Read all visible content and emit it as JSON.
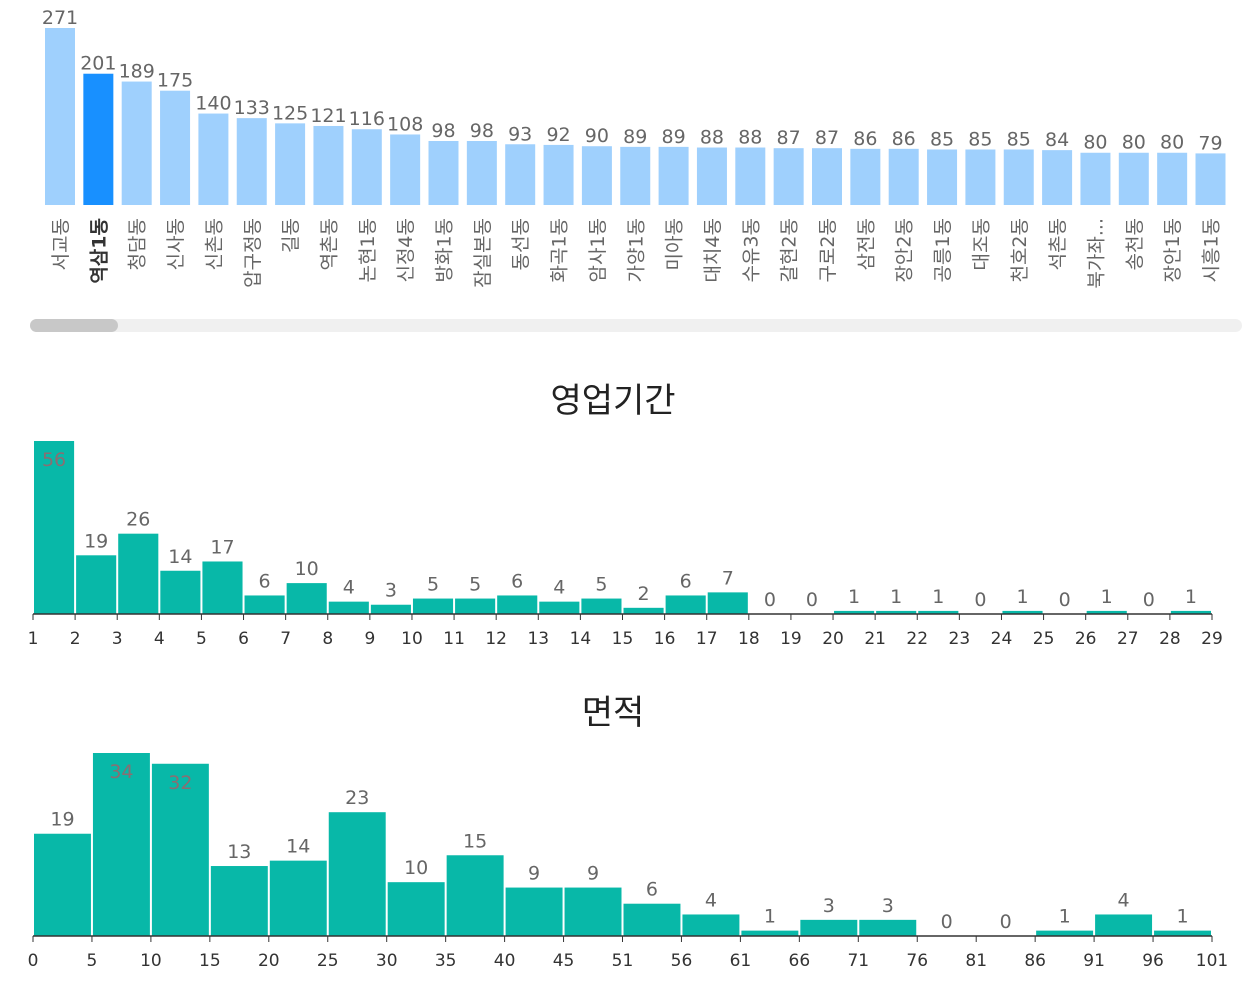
{
  "chart_data": [
    {
      "type": "bar",
      "categories": [
        "서교동",
        "역삼1동",
        "청담동",
        "신사동",
        "신촌동",
        "압구정동",
        "길동",
        "역촌동",
        "논현1동",
        "신정4동",
        "방화1동",
        "잠실본동",
        "동선동",
        "화곡1동",
        "암사1동",
        "가양1동",
        "미아동",
        "대치4동",
        "수유3동",
        "갈현2동",
        "구로2동",
        "삼전동",
        "장안2동",
        "공릉1동",
        "대조동",
        "천호2동",
        "석촌동",
        "북가좌...",
        "송천동",
        "장안1동",
        "시흥1동"
      ],
      "values": [
        271,
        201,
        189,
        175,
        140,
        133,
        125,
        121,
        116,
        108,
        98,
        98,
        93,
        92,
        90,
        89,
        89,
        88,
        88,
        87,
        87,
        86,
        86,
        85,
        85,
        85,
        84,
        80,
        80,
        80,
        79
      ],
      "highlighted": "역삼1동",
      "colors": {
        "bar": "#9fd0fd",
        "highlight": "#1890ff"
      },
      "scrollbar": true
    },
    {
      "type": "bar",
      "title": "영업기간",
      "x_ticks": [
        "1",
        "2",
        "3",
        "4",
        "5",
        "6",
        "7",
        "8",
        "9",
        "10",
        "11",
        "12",
        "13",
        "14",
        "15",
        "16",
        "17",
        "18",
        "19",
        "20",
        "21",
        "22",
        "23",
        "24",
        "25",
        "26",
        "27",
        "28",
        "29"
      ],
      "values": [
        56,
        19,
        26,
        14,
        17,
        6,
        10,
        4,
        3,
        5,
        5,
        6,
        4,
        5,
        2,
        6,
        7,
        0,
        0,
        1,
        1,
        1,
        0,
        1,
        0,
        1,
        0,
        1
      ],
      "color": "#08b8a8"
    },
    {
      "type": "bar",
      "title": "면적",
      "x_ticks": [
        "0",
        "5",
        "10",
        "15",
        "20",
        "25",
        "30",
        "35",
        "40",
        "45",
        "51",
        "56",
        "61",
        "66",
        "71",
        "76",
        "81",
        "86",
        "91",
        "96",
        "101"
      ],
      "values": [
        19,
        34,
        32,
        13,
        14,
        23,
        10,
        15,
        9,
        9,
        6,
        4,
        1,
        3,
        3,
        0,
        0,
        1,
        4,
        1
      ],
      "color": "#08b8a8"
    }
  ]
}
